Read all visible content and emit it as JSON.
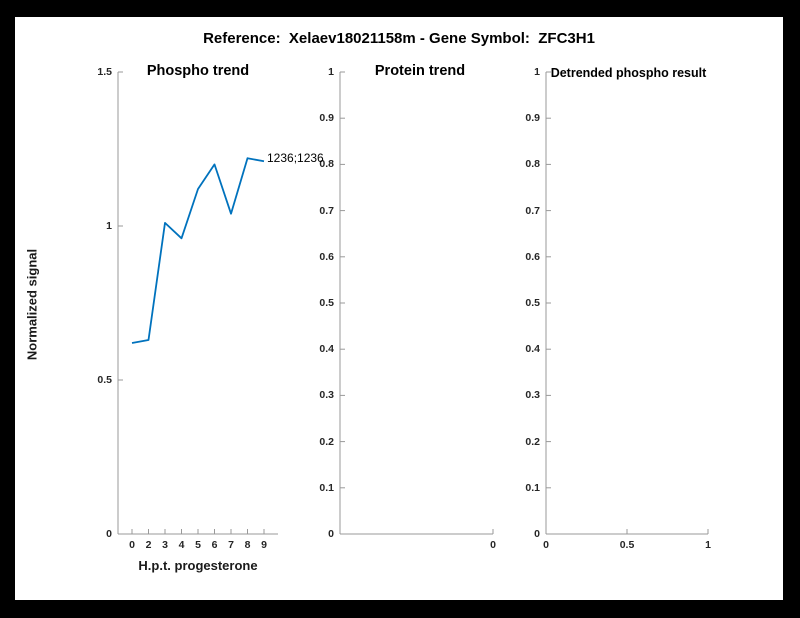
{
  "figure": {
    "title": "Reference:  Xelaev18021158m - Gene Symbol:  ZFC3H1",
    "background_color": "#000000",
    "canvas_color": "#ffffff",
    "axis_color": "#999999",
    "tick_text_color": "#262626"
  },
  "chart_data": [
    {
      "type": "line",
      "title": "Phospho trend",
      "xlabel": "H.p.t. progesterone",
      "ylabel": "Normalized signal",
      "categories": [
        "0",
        "2",
        "3",
        "4",
        "5",
        "6",
        "7",
        "8",
        "9"
      ],
      "values": [
        0.62,
        0.63,
        1.01,
        0.96,
        1.12,
        1.2,
        1.04,
        1.22,
        1.21
      ],
      "ylim": [
        0,
        1.5
      ],
      "yticks": [
        "0",
        "0.5",
        "1",
        "1.5"
      ],
      "grid": false,
      "legend": null,
      "line_color": "#0072BD",
      "end_label": "1236;1236"
    },
    {
      "type": "line",
      "title": "Protein trend",
      "xlabel": "",
      "ylabel": "",
      "series": [],
      "ylim": [
        0,
        1
      ],
      "yticks": [
        "0",
        "0.1",
        "0.2",
        "0.3",
        "0.4",
        "0.5",
        "0.6",
        "0.7",
        "0.8",
        "0.9",
        "1"
      ],
      "xticks": [
        "0"
      ],
      "grid": false,
      "legend": null
    },
    {
      "type": "line",
      "title": "Detrended phospho result",
      "xlabel": "",
      "ylabel": "",
      "series": [],
      "ylim": [
        0,
        1
      ],
      "xlim": [
        0,
        1
      ],
      "yticks": [
        "0",
        "0.1",
        "0.2",
        "0.3",
        "0.4",
        "0.5",
        "0.6",
        "0.7",
        "0.8",
        "0.9",
        "1"
      ],
      "xticks": [
        "0",
        "0.5",
        "1"
      ],
      "grid": false,
      "legend": null
    }
  ]
}
